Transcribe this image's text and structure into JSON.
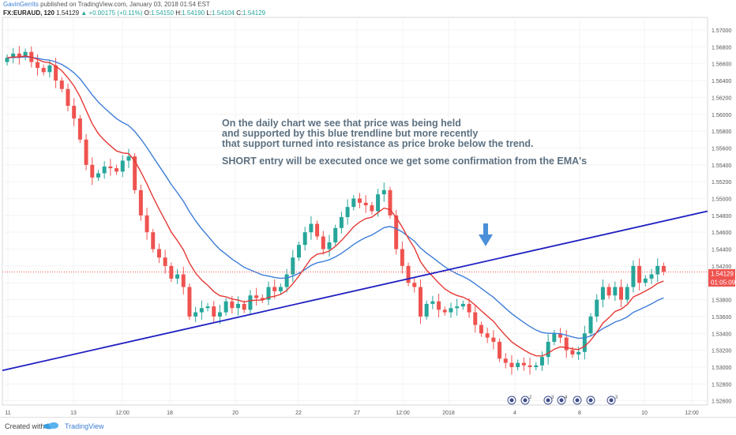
{
  "header": {
    "author": "GavinGerrits",
    "published": "published on TradingView.com, January 03, 2018 01:54 EST"
  },
  "symbol_bar": {
    "symbol": "FX:EURAUD, 120",
    "price": "1.54129",
    "change": "+0.00175 (+0.11%)",
    "open_label": "O:",
    "open": "1.54150",
    "high_label": "H:",
    "high": "1.54190",
    "low_label": "L:",
    "low": "1.54104",
    "close_label": "C:",
    "close": "1.54129"
  },
  "annotation": {
    "lines": [
      "On the daily chart we see that price was being held",
      "and supported by this blue trendline  but more recently",
      "that support turned into resistance as price broke below the trend.",
      "",
      "SHORT entry will be executed once we get some confirmation from the EMA's"
    ]
  },
  "price_label": "1.54129",
  "countdown_label": "01:05:09",
  "event_icon_counts": [
    "2",
    "3",
    "4",
    "3"
  ],
  "footer": {
    "created": "Created with",
    "brand": "TradingView"
  },
  "colors": {
    "bull": "#26a69a",
    "bear": "#ef5350",
    "ema_fast": "#e53935",
    "ema_slow": "#3d7dd8",
    "trendline": "#1f1fc2",
    "arrow": "#4a90d9",
    "annotation_text": "#5c7080"
  },
  "chart_data": {
    "type": "candlestick",
    "symbol": "EURAUD",
    "interval": "120",
    "y_axis": {
      "ticks": [
        "1.57000",
        "1.56800",
        "1.56600",
        "1.56400",
        "1.56200",
        "1.56000",
        "1.55800",
        "1.55600",
        "1.55400",
        "1.55200",
        "1.55000",
        "1.54800",
        "1.54600",
        "1.54400",
        "1.54200",
        "1.54000",
        "1.53800",
        "1.53600",
        "1.53400",
        "1.53200",
        "1.53000",
        "1.52800",
        "1.52600"
      ],
      "ylim": [
        1.5255,
        1.5715
      ]
    },
    "x_axis": {
      "ticks": [
        "11",
        "13",
        "12:00",
        "18",
        "20",
        "22",
        "27",
        "12:00",
        "2018",
        "4",
        "8",
        "10",
        "12:00"
      ]
    },
    "closes": [
      1.5667,
      1.5672,
      1.5668,
      1.5674,
      1.5662,
      1.5655,
      1.565,
      1.5658,
      1.564,
      1.563,
      1.561,
      1.5595,
      1.557,
      1.554,
      1.5525,
      1.553,
      1.5538,
      1.5536,
      1.5532,
      1.5545,
      1.555,
      1.551,
      1.548,
      1.546,
      1.544,
      1.543,
      1.542,
      1.5405,
      1.541,
      1.5395,
      1.536,
      1.5365,
      1.537,
      1.5372,
      1.536,
      1.5365,
      1.5378,
      1.537,
      1.5375,
      1.5368,
      1.5385,
      1.5382,
      1.538,
      1.5395,
      1.539,
      1.5395,
      1.541,
      1.543,
      1.5445,
      1.546,
      1.547,
      1.5455,
      1.544,
      1.5448,
      1.5465,
      1.5478,
      1.549,
      1.55,
      1.5495,
      1.5492,
      1.5485,
      1.5505,
      1.551,
      1.548,
      1.544,
      1.542,
      1.54,
      1.5395,
      1.536,
      1.5375,
      1.5378,
      1.5368,
      1.5365,
      1.537,
      1.5372,
      1.5375,
      1.5365,
      1.535,
      1.534,
      1.5335,
      1.533,
      1.531,
      1.5305,
      1.53,
      1.5305,
      1.5302,
      1.53,
      1.5302,
      1.5312,
      1.533,
      1.534,
      1.5335,
      1.532,
      1.5315,
      1.5318,
      1.534,
      1.536,
      1.538,
      1.5395,
      1.5385,
      1.5395,
      1.538,
      1.5395,
      1.542,
      1.54,
      1.5405,
      1.541,
      1.542,
      1.5413
    ],
    "trendline": {
      "from": [
        0,
        1.5296
      ],
      "to": [
        115,
        1.5485
      ]
    },
    "price_line": 1.54129,
    "ema_fast_period": 9,
    "ema_slow_period": 21
  }
}
